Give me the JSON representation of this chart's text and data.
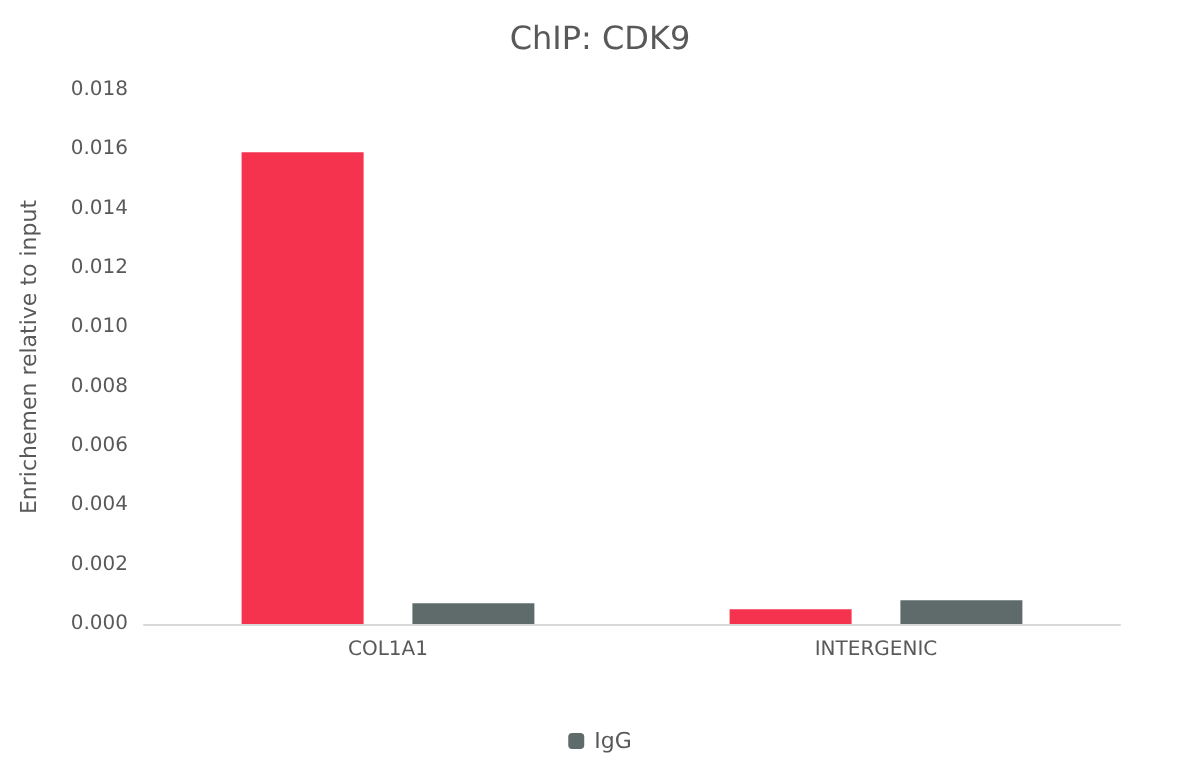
{
  "chart_data": {
    "type": "bar",
    "title": "ChIP: CDK9",
    "ylabel": "Enrichemen relative to input",
    "categories": [
      "COL1A1",
      "INTERGENIC"
    ],
    "series": [
      {
        "color": "#f5334f",
        "values": [
          0.0159,
          0.0005
        ]
      },
      {
        "name": "IgG",
        "color": "#5f6b6b",
        "values": [
          0.0007,
          0.0008
        ]
      }
    ],
    "ylim": [
      0,
      0.018
    ],
    "yticks": [
      {
        "value": 0,
        "label": "0.000"
      },
      {
        "value": 0.002,
        "label": "0.002"
      },
      {
        "value": 0.004,
        "label": "0.004"
      },
      {
        "value": 0.006,
        "label": "0.006"
      },
      {
        "value": 0.008,
        "label": "0.008"
      },
      {
        "value": 0.01,
        "label": "0.010"
      },
      {
        "value": 0.012,
        "label": "0.012"
      },
      {
        "value": 0.014,
        "label": "0.014"
      },
      {
        "value": 0.016,
        "label": "0.016"
      },
      {
        "value": 0.018,
        "label": "0.018"
      }
    ],
    "legend": "bottom"
  }
}
